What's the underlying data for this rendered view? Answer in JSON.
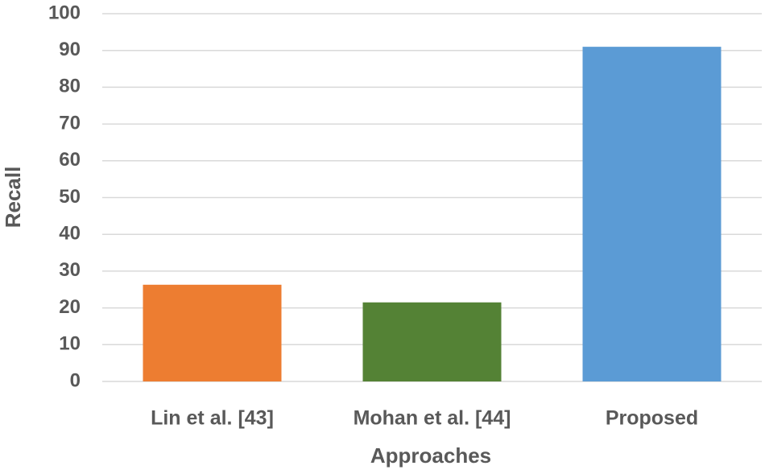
{
  "chart_data": {
    "type": "bar",
    "x_label": "Approaches",
    "y_label": "Recall",
    "categories": [
      "Lin et al. [43]",
      "Mohan et al. [44]",
      "Proposed"
    ],
    "values": [
      26.3,
      21.5,
      91
    ],
    "colors": [
      "#ed7d31",
      "#548235",
      "#5b9bd5"
    ],
    "ylim": [
      0,
      100
    ],
    "yticks": [
      0,
      10,
      20,
      30,
      40,
      50,
      60,
      70,
      80,
      90,
      100
    ],
    "grid": true
  }
}
